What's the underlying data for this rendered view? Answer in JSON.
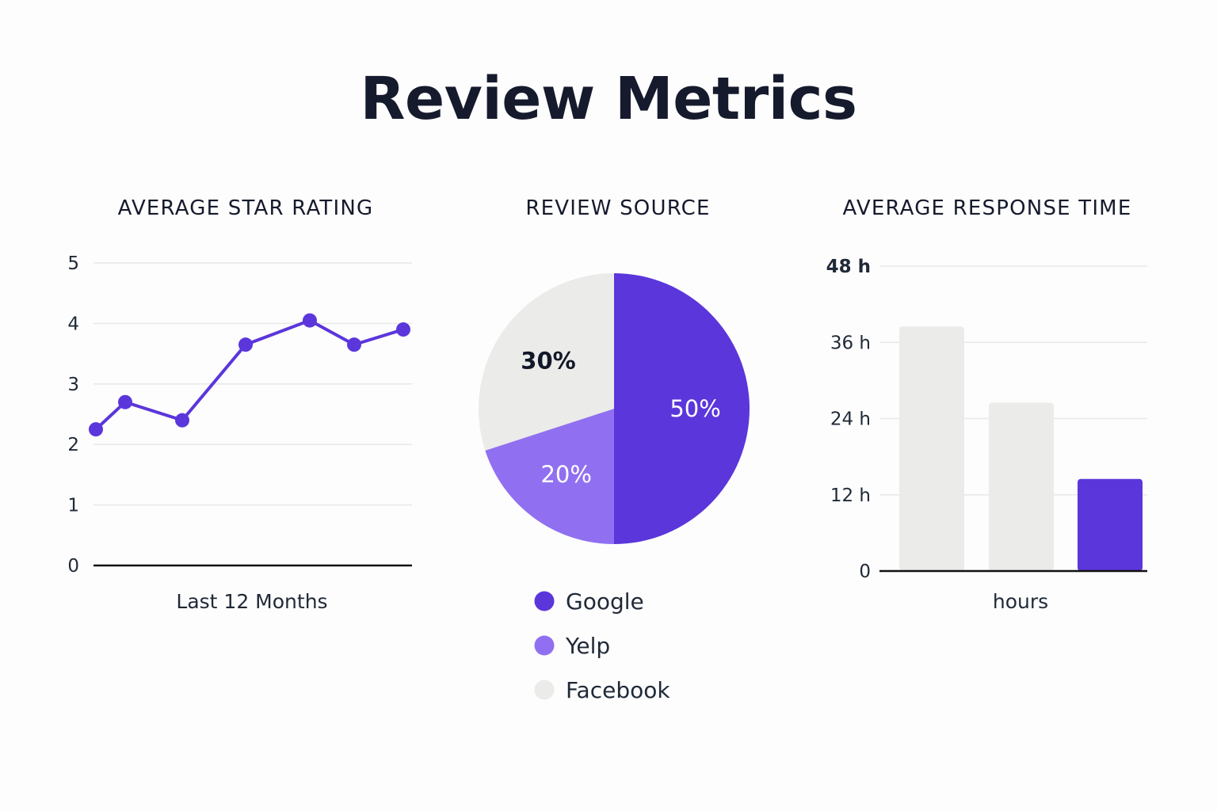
{
  "page": {
    "title": "Review Metrics"
  },
  "colors": {
    "accent": "#5b36db",
    "accent_light": "#9070f0",
    "neutral": "#ebebe9",
    "grid": "#e8e8e8",
    "axis": "#111111"
  },
  "chart_data": [
    {
      "type": "line",
      "title": "AVERAGE STAR RATING",
      "xlabel": "Last 12 Months",
      "ylabel": "",
      "ylim": [
        0,
        5
      ],
      "yticks": [
        "0",
        "1",
        "2",
        "3",
        "4",
        "5"
      ],
      "grid": true,
      "x": [
        1,
        2,
        3,
        4,
        5,
        6,
        7
      ],
      "values": [
        2.25,
        2.7,
        2.4,
        3.65,
        4.05,
        3.65,
        3.9
      ]
    },
    {
      "type": "pie",
      "title": "REVIEW SOURCE",
      "legend_position": "bottom",
      "slices": [
        {
          "name": "Google",
          "value": 50,
          "label": "50%",
          "color": "#5b36db"
        },
        {
          "name": "Yelp",
          "value": 20,
          "label": "20%",
          "color": "#9070f0"
        },
        {
          "name": "Facebook",
          "value": 30,
          "label": "30%",
          "color": "#ebebe9"
        }
      ]
    },
    {
      "type": "bar",
      "title": "AVERAGE RESPONSE TIME",
      "xlabel": "hours",
      "ylabel": "",
      "ylim": [
        0,
        48
      ],
      "yticks": [
        {
          "value": 0,
          "label": "0"
        },
        {
          "value": 12,
          "label": "12 h"
        },
        {
          "value": 24,
          "label": "24 h"
        },
        {
          "value": 36,
          "label": "36 h"
        },
        {
          "value": 48,
          "label": "48 h"
        }
      ],
      "grid": true,
      "values": [
        38.5,
        26.5,
        14.5
      ],
      "colors": [
        "#ebebe9",
        "#ebebe9",
        "#5b36db"
      ]
    }
  ]
}
